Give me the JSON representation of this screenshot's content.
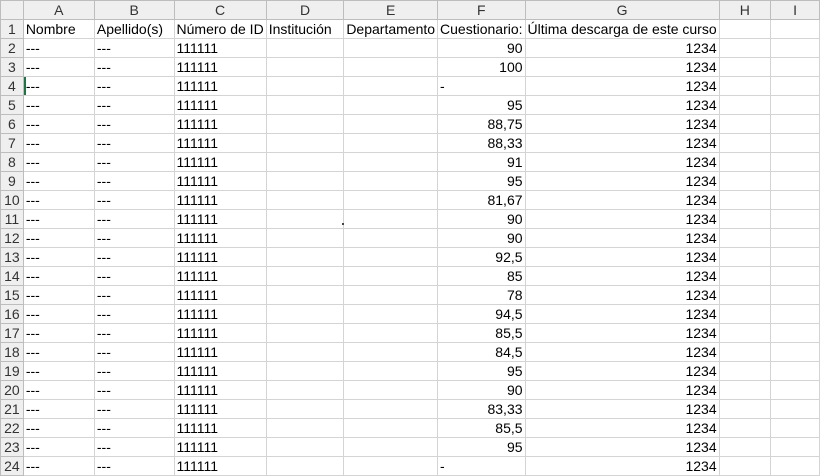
{
  "columns": [
    "A",
    "B",
    "C",
    "D",
    "E",
    "F",
    "G",
    "H",
    "I"
  ],
  "rows": [
    {
      "n": "1",
      "cells": [
        "Nombre",
        "Apellido(s)",
        "Número de ID",
        "Institución",
        "Departamento",
        "Cuestionario:",
        "Última descarga de este curso",
        "",
        ""
      ]
    },
    {
      "n": "2",
      "cells": [
        "---",
        "---",
        "111111",
        "",
        "",
        "90",
        "1234",
        "",
        ""
      ]
    },
    {
      "n": "3",
      "cells": [
        "---",
        "---",
        "111111",
        "",
        "",
        "100",
        "1234",
        "",
        ""
      ]
    },
    {
      "n": "4",
      "cells": [
        "---",
        "---",
        "111111",
        "",
        "",
        "-",
        "1234",
        "",
        ""
      ]
    },
    {
      "n": "5",
      "cells": [
        "---",
        "---",
        "111111",
        "",
        "",
        "95",
        "1234",
        "",
        ""
      ]
    },
    {
      "n": "6",
      "cells": [
        "---",
        "---",
        "111111",
        "",
        "",
        "88,75",
        "1234",
        "",
        ""
      ]
    },
    {
      "n": "7",
      "cells": [
        "---",
        "---",
        "111111",
        "",
        "",
        "88,33",
        "1234",
        "",
        ""
      ]
    },
    {
      "n": "8",
      "cells": [
        "---",
        "---",
        "111111",
        "",
        "",
        "91",
        "1234",
        "",
        ""
      ]
    },
    {
      "n": "9",
      "cells": [
        "---",
        "---",
        "111111",
        "",
        "",
        "95",
        "1234",
        "",
        ""
      ]
    },
    {
      "n": "10",
      "cells": [
        "---",
        "---",
        "111111",
        "",
        "",
        "81,67",
        "1234",
        "",
        ""
      ]
    },
    {
      "n": "11",
      "cells": [
        "---",
        "---",
        "111111",
        "",
        "",
        "90",
        "1234",
        "",
        ""
      ]
    },
    {
      "n": "12",
      "cells": [
        "---",
        "---",
        "111111",
        "",
        "",
        "90",
        "1234",
        "",
        ""
      ]
    },
    {
      "n": "13",
      "cells": [
        "---",
        "---",
        "111111",
        "",
        "",
        "92,5",
        "1234",
        "",
        ""
      ]
    },
    {
      "n": "14",
      "cells": [
        "---",
        "---",
        "111111",
        "",
        "",
        "85",
        "1234",
        "",
        ""
      ]
    },
    {
      "n": "15",
      "cells": [
        "---",
        "---",
        "111111",
        "",
        "",
        "78",
        "1234",
        "",
        ""
      ]
    },
    {
      "n": "16",
      "cells": [
        "---",
        "---",
        "111111",
        "",
        "",
        "94,5",
        "1234",
        "",
        ""
      ]
    },
    {
      "n": "17",
      "cells": [
        "---",
        "---",
        "111111",
        "",
        "",
        "85,5",
        "1234",
        "",
        ""
      ]
    },
    {
      "n": "18",
      "cells": [
        "---",
        "---",
        "111111",
        "",
        "",
        "84,5",
        "1234",
        "",
        ""
      ]
    },
    {
      "n": "19",
      "cells": [
        "---",
        "---",
        "111111",
        "",
        "",
        "95",
        "1234",
        "",
        ""
      ]
    },
    {
      "n": "20",
      "cells": [
        "---",
        "---",
        "111111",
        "",
        "",
        "90",
        "1234",
        "",
        ""
      ]
    },
    {
      "n": "21",
      "cells": [
        "---",
        "---",
        "111111",
        "",
        "",
        "83,33",
        "1234",
        "",
        ""
      ]
    },
    {
      "n": "22",
      "cells": [
        "---",
        "---",
        "111111",
        "",
        "",
        "85,5",
        "1234",
        "",
        ""
      ]
    },
    {
      "n": "23",
      "cells": [
        "---",
        "---",
        "111111",
        "",
        "",
        "95",
        "1234",
        "",
        ""
      ]
    },
    {
      "n": "24",
      "cells": [
        "---",
        "---",
        "111111",
        "",
        "",
        "-",
        "1234",
        "",
        ""
      ]
    }
  ],
  "selected_row": "4",
  "selection_color": "#217346"
}
